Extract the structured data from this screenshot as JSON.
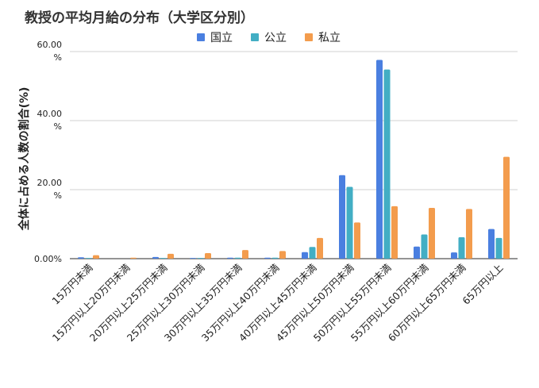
{
  "chart_data": {
    "type": "bar",
    "title": "教授の平均月給の分布（大学区分別）",
    "ylabel": "全体に占める人数の割合(%)",
    "xlabel": "",
    "ylim": [
      0,
      60
    ],
    "grid": true,
    "legend_position": "top",
    "yticks": [
      {
        "value": 0,
        "label": "0.00%"
      },
      {
        "value": 20,
        "label": "20.00%"
      },
      {
        "value": 40,
        "label": "40.00%"
      },
      {
        "value": 60,
        "label": "60.00%"
      }
    ],
    "categories": [
      "15万円未満",
      "15万円以上20万円未満",
      "20万円以上25万円未満",
      "25万円以上30万円未満",
      "30万円以上35万円未満",
      "35万円以上40万円未満",
      "40万円以上45万円未満",
      "45万円以上50万円未満",
      "50万円以上55万円未満",
      "55万円以上60万円未満",
      "60万円以上65万円未満",
      "65万円以上"
    ],
    "series": [
      {
        "name": "国立",
        "color": "#4a7fe0",
        "values": [
          0.4,
          0.0,
          0.5,
          0.2,
          0.3,
          0.3,
          1.9,
          24.2,
          57.6,
          3.5,
          1.8,
          8.6
        ]
      },
      {
        "name": "公立",
        "color": "#42aec4",
        "values": [
          0.2,
          0.0,
          0.2,
          0.2,
          0.3,
          0.3,
          3.4,
          20.8,
          54.8,
          7.0,
          6.2,
          6.0
        ]
      },
      {
        "name": "私立",
        "color": "#f39c4d",
        "values": [
          1.0,
          0.3,
          1.4,
          1.6,
          2.5,
          2.2,
          6.0,
          10.5,
          15.2,
          14.7,
          14.4,
          29.5
        ]
      }
    ]
  }
}
